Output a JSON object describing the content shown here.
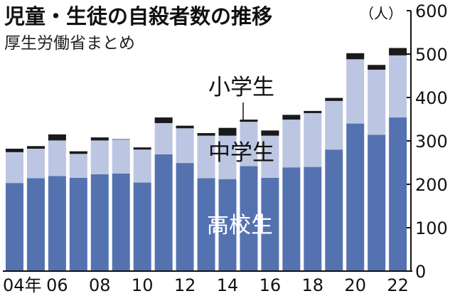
{
  "chart_data": {
    "type": "bar",
    "stacked": true,
    "title": "児童・生徒の自殺者数の推移",
    "subtitle": "厚生労働省まとめ",
    "unit": "（人）",
    "ylim": [
      0,
      600
    ],
    "y_ticks": [
      "0",
      "100",
      "200",
      "300",
      "400",
      "500",
      "600"
    ],
    "x_tick_labels": [
      "04年",
      "06",
      "08",
      "10",
      "12",
      "14",
      "16",
      "18",
      "20",
      "22"
    ],
    "categories": [
      "2004",
      "2005",
      "2006",
      "2007",
      "2008",
      "2009",
      "2010",
      "2011",
      "2012",
      "2013",
      "2014",
      "2015",
      "2016",
      "2017",
      "2018",
      "2019",
      "2020",
      "2021",
      "2022"
    ],
    "series": [
      {
        "name": "高校生",
        "color": "#5572b0",
        "values": [
          203,
          214,
          219,
          215,
          223,
          225,
          204,
          269,
          249,
          214,
          212,
          242,
          215,
          239,
          240,
          280,
          340,
          314,
          354
        ]
      },
      {
        "name": "中学生",
        "color": "#bcc6e2",
        "values": [
          71,
          68,
          82,
          55,
          78,
          78,
          76,
          72,
          80,
          98,
          100,
          102,
          97,
          110,
          124,
          112,
          148,
          150,
          143
        ]
      },
      {
        "name": "小学生",
        "color": "#1a1a1a",
        "values": [
          8,
          6,
          14,
          6,
          7,
          1,
          5,
          13,
          6,
          6,
          18,
          5,
          12,
          11,
          5,
          7,
          14,
          11,
          17
        ]
      }
    ],
    "legend_placement": "inline-labels"
  }
}
